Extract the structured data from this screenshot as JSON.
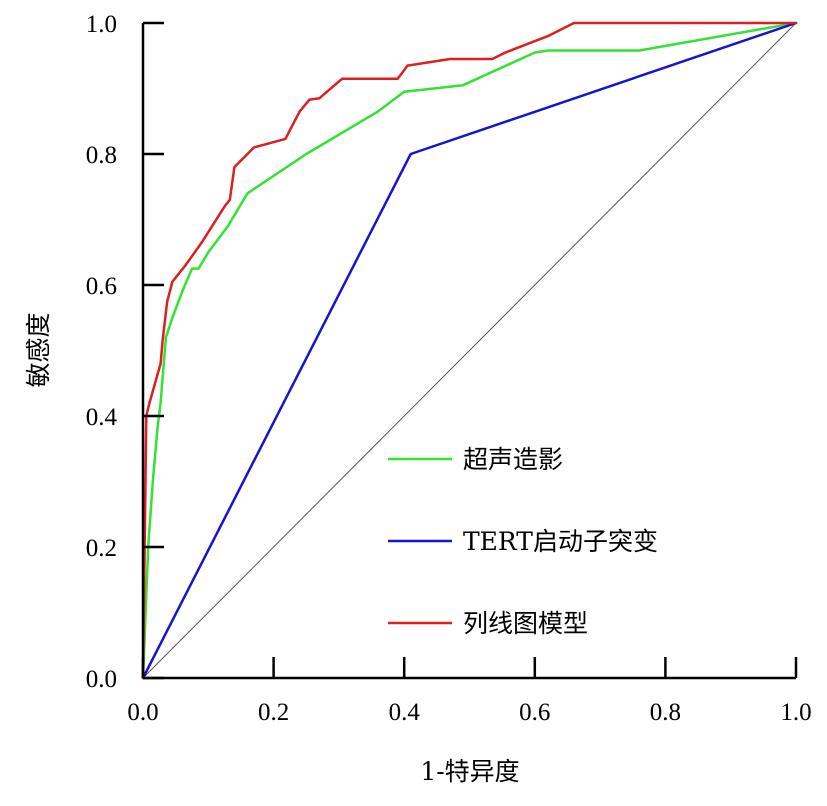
{
  "chart_data": {
    "type": "line",
    "title": "",
    "xlabel": "1-特异度",
    "ylabel": "敏感度",
    "xlim": [
      0,
      1
    ],
    "ylim": [
      0,
      1
    ],
    "x_ticks": [
      "0.0",
      "0.2",
      "0.4",
      "0.6",
      "0.8",
      "1.0"
    ],
    "y_ticks": [
      "0.0",
      "0.2",
      "0.4",
      "0.6",
      "0.8",
      "1.0"
    ],
    "grid": false,
    "legend_position": "right-middle",
    "reference_line": {
      "x": [
        0,
        1
      ],
      "y": [
        0,
        1
      ],
      "color": "#555555"
    },
    "series": [
      {
        "name": "超声造影",
        "color": "#33e233",
        "x": [
          0,
          0.008,
          0.015,
          0.022,
          0.027,
          0.035,
          0.045,
          0.06,
          0.075,
          0.085,
          0.1,
          0.13,
          0.16,
          0.25,
          0.36,
          0.4,
          0.49,
          0.6,
          0.62,
          0.76,
          1.0
        ],
        "y": [
          0,
          0.2,
          0.3,
          0.38,
          0.42,
          0.52,
          0.55,
          0.59,
          0.625,
          0.625,
          0.65,
          0.69,
          0.74,
          0.8,
          0.865,
          0.895,
          0.905,
          0.955,
          0.958,
          0.958,
          1.0
        ]
      },
      {
        "name": "TERT启动子突变",
        "color": "#1515cc",
        "x": [
          0,
          0.41,
          1.0
        ],
        "y": [
          0,
          0.8,
          1.0
        ]
      },
      {
        "name": "列线图模型",
        "color": "#dd1f1f",
        "x": [
          0,
          0.005,
          0.01,
          0.027,
          0.03,
          0.037,
          0.045,
          0.065,
          0.09,
          0.125,
          0.133,
          0.14,
          0.17,
          0.218,
          0.24,
          0.255,
          0.27,
          0.305,
          0.39,
          0.405,
          0.47,
          0.535,
          0.555,
          0.62,
          0.66,
          1.0
        ],
        "y": [
          0,
          0.4,
          0.42,
          0.48,
          0.515,
          0.575,
          0.605,
          0.63,
          0.665,
          0.72,
          0.73,
          0.78,
          0.81,
          0.823,
          0.865,
          0.883,
          0.885,
          0.915,
          0.915,
          0.935,
          0.945,
          0.945,
          0.955,
          0.98,
          1.0,
          1.0
        ]
      }
    ]
  }
}
